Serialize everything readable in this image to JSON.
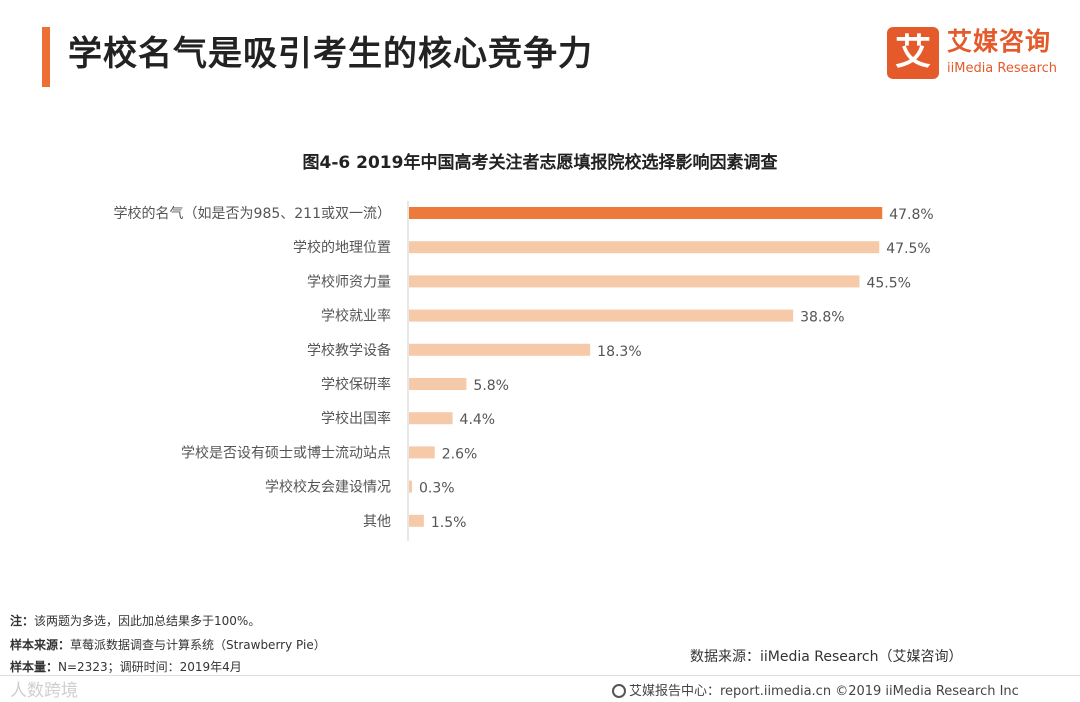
{
  "header": {
    "title": "学校名气是吸引考生的核心竞争力",
    "logo_mark": "艾",
    "logo_cn": "艾媒咨询",
    "logo_en": "iiMedia Research"
  },
  "chart_data": {
    "type": "bar",
    "orientation": "horizontal",
    "title": "图4-6 2019年中国高考关注者志愿填报院校选择影响因素调查",
    "categories": [
      "学校的名气（如是否为985、211或双一流）",
      "学校的地理位置",
      "学校师资力量",
      "学校就业率",
      "学校教学设备",
      "学校保研率",
      "学校出国率",
      "学校是否设有硕士或博士流动站点",
      "学校校友会建设情况",
      "其他"
    ],
    "values": [
      47.8,
      47.5,
      45.5,
      38.8,
      18.3,
      5.8,
      4.4,
      2.6,
      0.3,
      1.5
    ],
    "value_labels": [
      "47.8%",
      "47.5%",
      "45.5%",
      "38.8%",
      "18.3%",
      "5.8%",
      "4.4%",
      "2.6%",
      "0.3%",
      "1.5%"
    ],
    "unit": "%",
    "highlight_index": 0,
    "xlim": [
      0,
      50
    ],
    "colors": {
      "highlight": "#ec7a3a",
      "default": "#f6c9a9",
      "axis": "#cfcfcf"
    }
  },
  "notes": {
    "note_key": "注：",
    "note_text": "该两题为多选，因此加总结果多于100%。",
    "sample_source_key": "样本来源：",
    "sample_source_text": "草莓派数据调查与计算系统（Strawberry Pie）",
    "sample_size_key": "样本量：",
    "sample_size_text": "N=2323；调研时间：2019年4月"
  },
  "source": "数据来源：iiMedia Research（艾媒咨询）",
  "footer": {
    "text": "艾媒报告中心：report.iimedia.cn  ©2019  iiMedia Research  Inc"
  },
  "watermark": "人数跨境"
}
